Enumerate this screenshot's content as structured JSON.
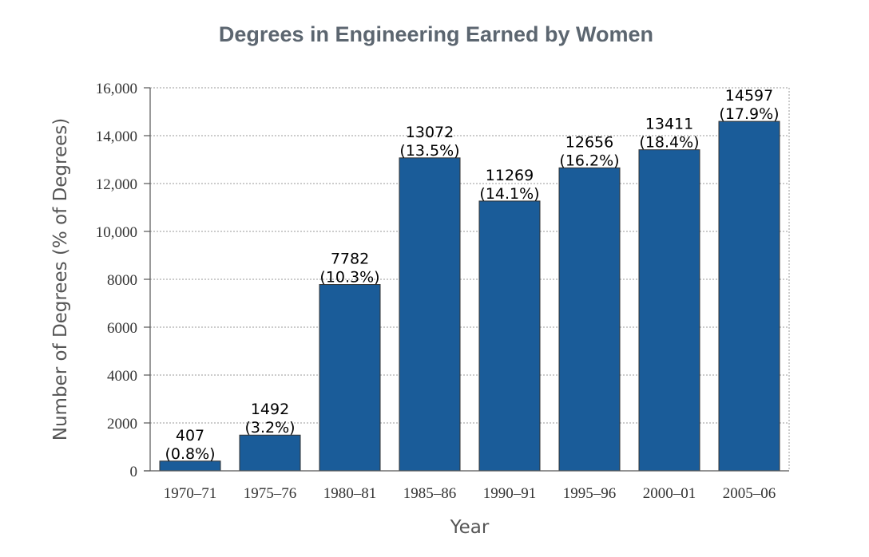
{
  "chart_data": {
    "type": "bar",
    "title": "Degrees in Engineering Earned by Women",
    "xlabel": "Year",
    "ylabel": "Number of Degrees (% of Degrees)",
    "categories": [
      "1970–71",
      "1975–76",
      "1980–81",
      "1985–86",
      "1990–91",
      "1995–96",
      "2000–01",
      "2005–06"
    ],
    "values": [
      407,
      1492,
      7782,
      13072,
      11269,
      12656,
      13411,
      14597
    ],
    "percent_labels": [
      "(0.8%)",
      "(3.2%)",
      "(10.3%)",
      "(13.5%)",
      "(14.1%)",
      "(16.2%)",
      "(18.4%)",
      "(17.9%)"
    ],
    "value_labels": [
      "407",
      "1492",
      "7782",
      "13072",
      "11269",
      "12656",
      "13411",
      "14597"
    ],
    "ylim": [
      0,
      16000
    ],
    "yticks": [
      0,
      2000,
      4000,
      6000,
      8000,
      10000,
      12000,
      14000,
      16000
    ],
    "ytick_labels": [
      "0",
      "2000",
      "4000",
      "6000",
      "8000",
      "10,000",
      "12,000",
      "14,000",
      "16,000"
    ],
    "grid": true,
    "bar_color": "#1a5c99"
  }
}
